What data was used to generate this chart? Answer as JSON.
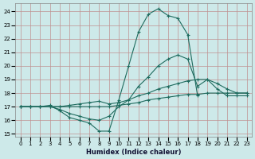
{
  "xlabel": "Humidex (Indice chaleur)",
  "xlim": [
    -0.5,
    23.5
  ],
  "ylim": [
    14.8,
    24.6
  ],
  "yticks": [
    15,
    16,
    17,
    18,
    19,
    20,
    21,
    22,
    23,
    24
  ],
  "xticks": [
    0,
    1,
    2,
    3,
    4,
    5,
    6,
    7,
    8,
    9,
    10,
    11,
    12,
    13,
    14,
    15,
    16,
    17,
    18,
    19,
    20,
    21,
    22,
    23
  ],
  "bg_color": "#cde9e9",
  "grid_color": "#c09090",
  "line_color": "#1e6b5e",
  "series": [
    {
      "x": [
        0,
        1,
        2,
        3,
        4,
        5,
        6,
        7,
        8,
        9,
        10,
        11,
        12,
        13,
        14,
        15,
        16,
        17,
        18
      ],
      "y": [
        17,
        17,
        17,
        17.1,
        16.7,
        16.2,
        16.0,
        15.8,
        15.2,
        15.2,
        17.5,
        20.0,
        22.5,
        23.8,
        24.2,
        23.7,
        23.5,
        22.3,
        17.8
      ]
    },
    {
      "x": [
        0,
        1,
        2,
        3,
        4,
        5,
        6,
        7,
        8,
        9,
        10,
        11,
        12,
        13,
        14,
        15,
        16,
        17,
        18,
        19,
        20,
        21,
        22,
        23
      ],
      "y": [
        17,
        17,
        17,
        17.0,
        16.8,
        16.5,
        16.3,
        16.1,
        16.0,
        16.3,
        17.0,
        17.5,
        18.5,
        19.2,
        20.0,
        20.5,
        20.8,
        20.5,
        18.5,
        19.0,
        18.3,
        17.8,
        17.8,
        17.8
      ]
    },
    {
      "x": [
        0,
        1,
        2,
        3,
        4,
        5,
        6,
        7,
        8,
        9,
        10,
        11,
        12,
        13,
        14,
        15,
        16,
        17,
        18,
        19,
        20,
        21,
        22,
        23
      ],
      "y": [
        17,
        17,
        17,
        17.0,
        17.0,
        17.1,
        17.2,
        17.3,
        17.4,
        17.2,
        17.3,
        17.5,
        17.8,
        18.0,
        18.3,
        18.5,
        18.7,
        18.9,
        19.0,
        19.0,
        18.7,
        18.3,
        18.0,
        18.0
      ]
    },
    {
      "x": [
        0,
        1,
        2,
        3,
        4,
        5,
        6,
        7,
        8,
        9,
        10,
        11,
        12,
        13,
        14,
        15,
        16,
        17,
        18,
        19,
        20,
        21,
        22,
        23
      ],
      "y": [
        17,
        17,
        17,
        17.0,
        17.0,
        17.0,
        17.0,
        17.0,
        17.0,
        17.0,
        17.1,
        17.2,
        17.3,
        17.5,
        17.6,
        17.7,
        17.8,
        17.9,
        17.9,
        18.0,
        18.0,
        18.0,
        18.0,
        18.0
      ]
    }
  ]
}
